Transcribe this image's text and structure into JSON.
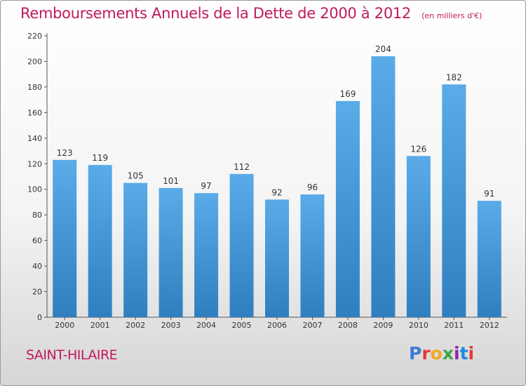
{
  "title": "Remboursements Annuels de la Dette de 2000 à 2012",
  "unit_note": "(en milliers d'€)",
  "city": "SAINT-HILAIRE",
  "logo": {
    "text": "Proxiti",
    "letter_colors": [
      "#3a7bd5",
      "#e53935",
      "#f5a623",
      "#43a047",
      "#8e24aa",
      "#1e88e5",
      "#e53935"
    ]
  },
  "colors": {
    "title": "#c2185b",
    "bar_top": "#5aabe8",
    "bar_bottom": "#2f7fc0",
    "axis": "#555555"
  },
  "chart_data": {
    "type": "bar",
    "categories": [
      "2000",
      "2001",
      "2002",
      "2003",
      "2004",
      "2005",
      "2006",
      "2007",
      "2008",
      "2009",
      "2010",
      "2011",
      "2012"
    ],
    "values": [
      123,
      119,
      105,
      101,
      97,
      112,
      92,
      96,
      169,
      204,
      126,
      182,
      91
    ],
    "ylim": [
      0,
      220
    ],
    "yticks": [
      0,
      20,
      40,
      60,
      80,
      100,
      120,
      140,
      160,
      180,
      200,
      220
    ],
    "grid": false,
    "data_labels": true
  }
}
